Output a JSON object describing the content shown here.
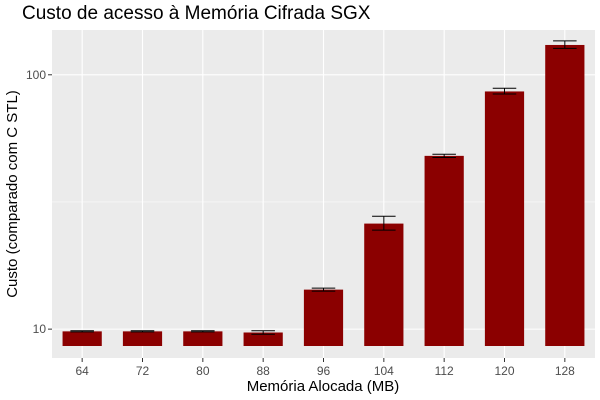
{
  "chart_data": {
    "type": "bar",
    "title": "Custo de acesso à Memória Cifrada SGX",
    "xlabel": "Memória Alocada (MB)",
    "ylabel": "Custo (comparado com C STL)",
    "y_scale": "log",
    "ylim": [
      7.7,
      150
    ],
    "y_ticks": [
      10,
      100
    ],
    "y_tick_labels": [
      "10",
      "100"
    ],
    "grid": true,
    "categories": [
      "64",
      "72",
      "80",
      "88",
      "96",
      "104",
      "112",
      "120",
      "128"
    ],
    "values": [
      9.8,
      9.8,
      9.8,
      9.7,
      14.3,
      26,
      48,
      86,
      131
    ],
    "error_low": [
      9.75,
      9.75,
      9.75,
      9.55,
      14.1,
      24.5,
      47.3,
      84,
      127
    ],
    "error_high": [
      9.85,
      9.85,
      9.85,
      9.85,
      14.5,
      27.8,
      48.7,
      88.5,
      136
    ],
    "bar_color": "#8b0000",
    "panel_color": "#ebebeb",
    "grid_color": "#ffffff"
  }
}
